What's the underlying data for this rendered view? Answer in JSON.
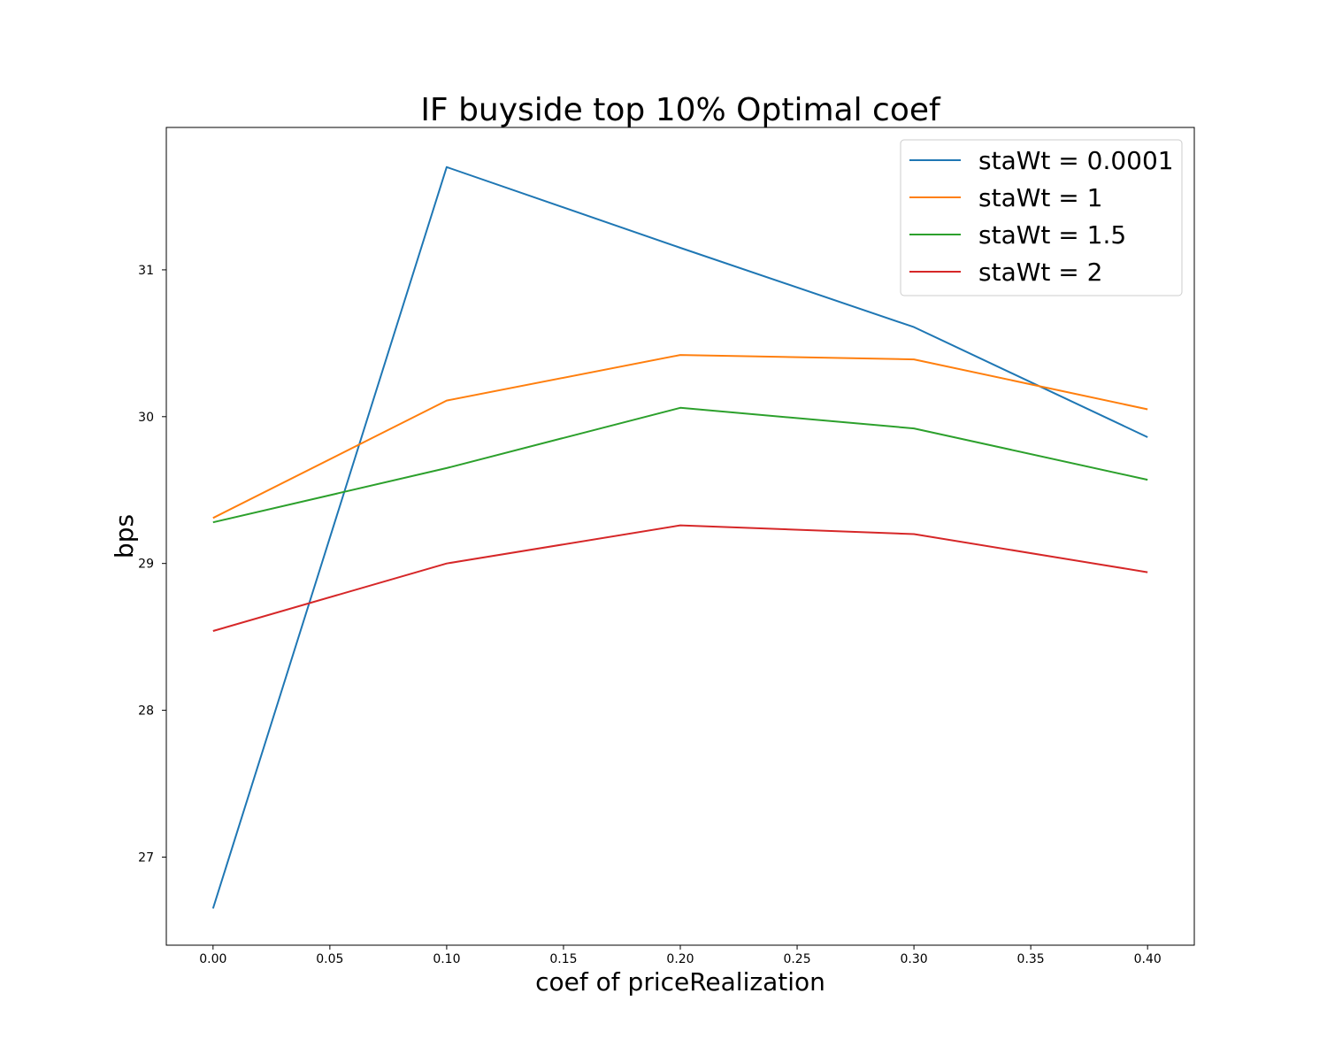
{
  "chart_data": {
    "type": "line",
    "title": "IF buyside top 10% Optimal coef",
    "xlabel": "coef of priceRealization",
    "ylabel": "bps",
    "x": [
      0.0,
      0.1,
      0.2,
      0.3,
      0.4
    ],
    "xlim": [
      -0.02,
      0.42
    ],
    "ylim": [
      26.4,
      31.97
    ],
    "x_ticks": [
      "0.00",
      "0.05",
      "0.10",
      "0.15",
      "0.20",
      "0.25",
      "0.30",
      "0.35",
      "0.40"
    ],
    "y_ticks": [
      "27",
      "28",
      "29",
      "30",
      "31"
    ],
    "grid": false,
    "legend_position": "top-right",
    "series": [
      {
        "name": "staWt = 0.0001",
        "color": "#1f77b4",
        "values": [
          26.65,
          31.7,
          31.15,
          30.61,
          29.86
        ]
      },
      {
        "name": "staWt = 1",
        "color": "#ff7f0e",
        "values": [
          29.31,
          30.11,
          30.42,
          30.39,
          30.05
        ]
      },
      {
        "name": "staWt = 1.5",
        "color": "#2ca02c",
        "values": [
          29.28,
          29.65,
          30.06,
          29.92,
          29.57
        ]
      },
      {
        "name": "staWt = 2",
        "color": "#d62728",
        "values": [
          28.54,
          29.0,
          29.26,
          29.2,
          28.94
        ]
      }
    ]
  }
}
